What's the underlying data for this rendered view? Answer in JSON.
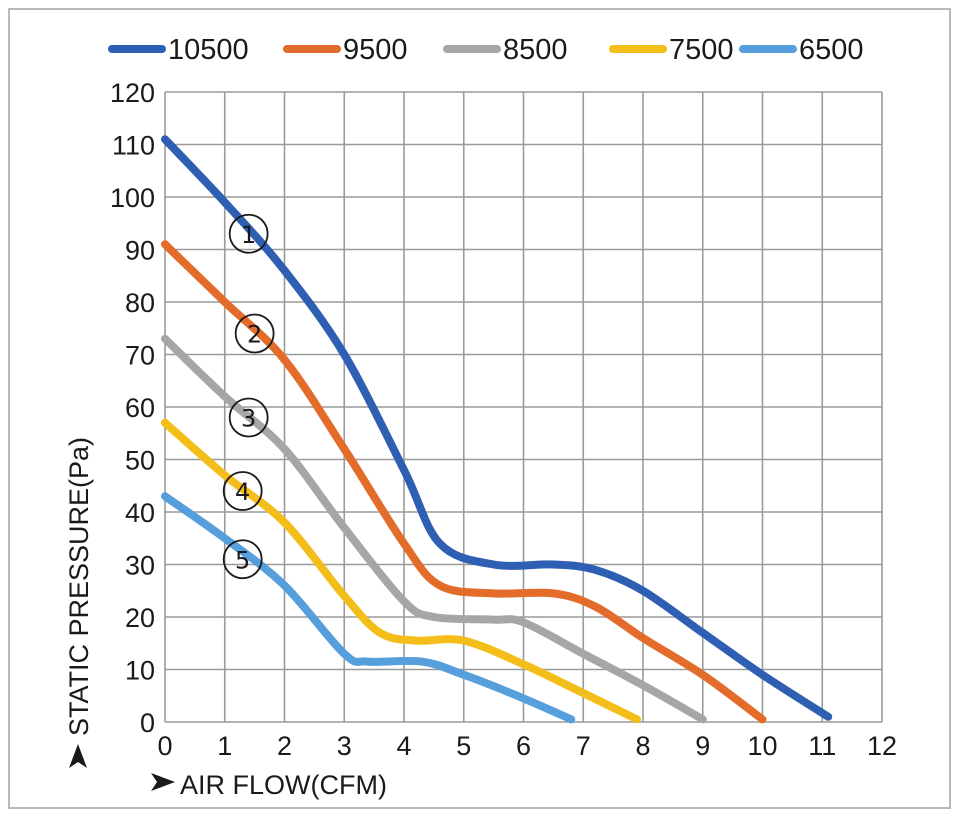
{
  "chart_data": {
    "type": "line",
    "title": "",
    "xlabel": "AIR FLOW(CFM)",
    "ylabel": "STATIC PRESSURE(Pa)",
    "xlim": [
      0,
      12
    ],
    "ylim": [
      0,
      120
    ],
    "x_ticks": [
      0,
      1,
      2,
      3,
      4,
      5,
      6,
      7,
      8,
      9,
      10,
      11,
      12
    ],
    "y_ticks": [
      0,
      10,
      20,
      30,
      40,
      50,
      60,
      70,
      80,
      90,
      100,
      110,
      120
    ],
    "grid": true,
    "legend_position": "top",
    "series": [
      {
        "name": "10500",
        "color": "#2f5fb3",
        "marker": "1",
        "marker_at": [
          1.4,
          93
        ],
        "points": [
          [
            0,
            111
          ],
          [
            1,
            99
          ],
          [
            2,
            86
          ],
          [
            3,
            70
          ],
          [
            4,
            48
          ],
          [
            4.6,
            34
          ],
          [
            5.5,
            30
          ],
          [
            6.5,
            30
          ],
          [
            7.2,
            29
          ],
          [
            8,
            25
          ],
          [
            9,
            17
          ],
          [
            10,
            9
          ],
          [
            11.1,
            1
          ]
        ]
      },
      {
        "name": "9500",
        "color": "#e46c2b",
        "marker": "2",
        "marker_at": [
          1.5,
          74
        ],
        "points": [
          [
            0,
            91
          ],
          [
            1,
            80
          ],
          [
            2,
            69
          ],
          [
            3,
            52
          ],
          [
            4,
            34
          ],
          [
            4.6,
            26
          ],
          [
            5.5,
            24.5
          ],
          [
            6.5,
            24.5
          ],
          [
            7.2,
            22
          ],
          [
            8,
            16
          ],
          [
            9,
            9
          ],
          [
            10,
            0.5
          ]
        ]
      },
      {
        "name": "8500",
        "color": "#a6a6a6",
        "marker": "3",
        "marker_at": [
          1.4,
          58
        ],
        "points": [
          [
            0,
            73
          ],
          [
            1,
            62
          ],
          [
            2,
            52
          ],
          [
            3,
            37
          ],
          [
            4,
            23
          ],
          [
            4.5,
            20
          ],
          [
            5.5,
            19.5
          ],
          [
            6,
            19
          ],
          [
            7,
            13
          ],
          [
            8,
            7
          ],
          [
            9,
            0.5
          ]
        ]
      },
      {
        "name": "7500",
        "color": "#f4be1a",
        "marker": "4",
        "marker_at": [
          1.3,
          44
        ],
        "points": [
          [
            0,
            57
          ],
          [
            1,
            47
          ],
          [
            2,
            38
          ],
          [
            3,
            24
          ],
          [
            3.6,
            17
          ],
          [
            4.2,
            15.5
          ],
          [
            5,
            15.5
          ],
          [
            6,
            11
          ],
          [
            7,
            5.5
          ],
          [
            7.9,
            0.5
          ]
        ]
      },
      {
        "name": "6500",
        "color": "#569fdc",
        "marker": "5",
        "marker_at": [
          1.3,
          31
        ],
        "points": [
          [
            0,
            43
          ],
          [
            1,
            35
          ],
          [
            2,
            26
          ],
          [
            3,
            13
          ],
          [
            3.4,
            11.5
          ],
          [
            4.3,
            11.5
          ],
          [
            5,
            9
          ],
          [
            6,
            4.5
          ],
          [
            6.8,
            0.5
          ]
        ]
      }
    ]
  }
}
